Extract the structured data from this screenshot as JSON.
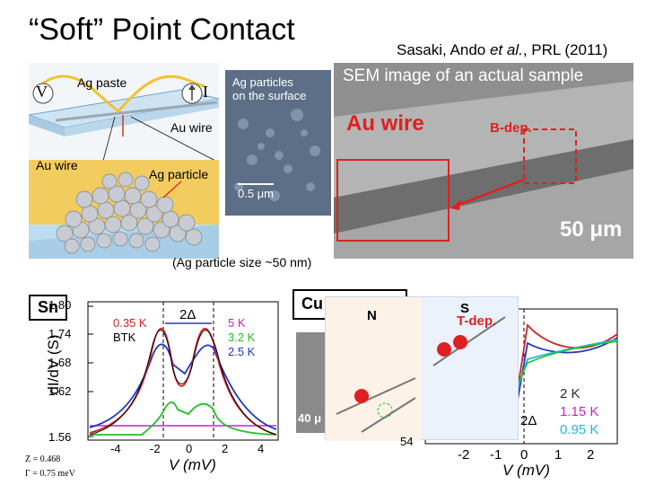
{
  "slide": {
    "title": "“Soft” Point Contact",
    "citation_prefix": "Sasaki, Ando ",
    "citation_etal": "et al.",
    "citation_suffix": ", PRL (2011)"
  },
  "schematic": {
    "ag_paste": "Ag paste",
    "voltmeter": "V",
    "ammeter": "I",
    "au_wire_top": "Au wire",
    "au_wire_left": "Au wire",
    "ag_particle": "Ag particle",
    "caption": "(Ag particle size ~50 nm)"
  },
  "inset": {
    "label_line1": "Ag particles",
    "label_line2": "on the surface",
    "scale": "0.5 μm"
  },
  "sem": {
    "title": "SEM image of an actual sample",
    "au_wire": "Au wire",
    "b_dep": "B-dep.",
    "scale": "50 μm"
  },
  "sn_plot": {
    "tag": "Sn",
    "ylabel": "dI/dV  (S)",
    "xlabel": "V (mV)",
    "yticks": [
      "1.80",
      "1.74",
      "1.68",
      "1.62",
      "1.56"
    ],
    "xticks": [
      "-4",
      "-2",
      "0",
      "2",
      "4"
    ],
    "gap_label": "2Δ",
    "legend_left": [
      "0.35 K",
      "BTK"
    ],
    "legend_right": [
      "5 K",
      "3.2 K",
      "2.5 K"
    ],
    "fit_z": "Z = 0.468",
    "fit_gamma": "Γ = 0.75 meV",
    "colors": {
      "red": "#d42020",
      "blue": "#2036c8",
      "green": "#22c022",
      "magenta": "#cc20cc",
      "black": "#000000"
    }
  },
  "cu_plot": {
    "tag": "Cu",
    "n_label": "N",
    "s_label": "S",
    "t_dep": "T-dep.",
    "sem_scale": "40 μ",
    "ytick": "54",
    "xticks": [
      "-2",
      "-1",
      "0",
      "1",
      "2"
    ],
    "xlabel": "V (mV)",
    "gap_label": "2Δ",
    "legend": [
      "2 K",
      "1.15 K",
      "0.95 K"
    ],
    "legend_colors": [
      "#2a2a2a",
      "#cc20cc",
      "#20b8d8"
    ]
  }
}
